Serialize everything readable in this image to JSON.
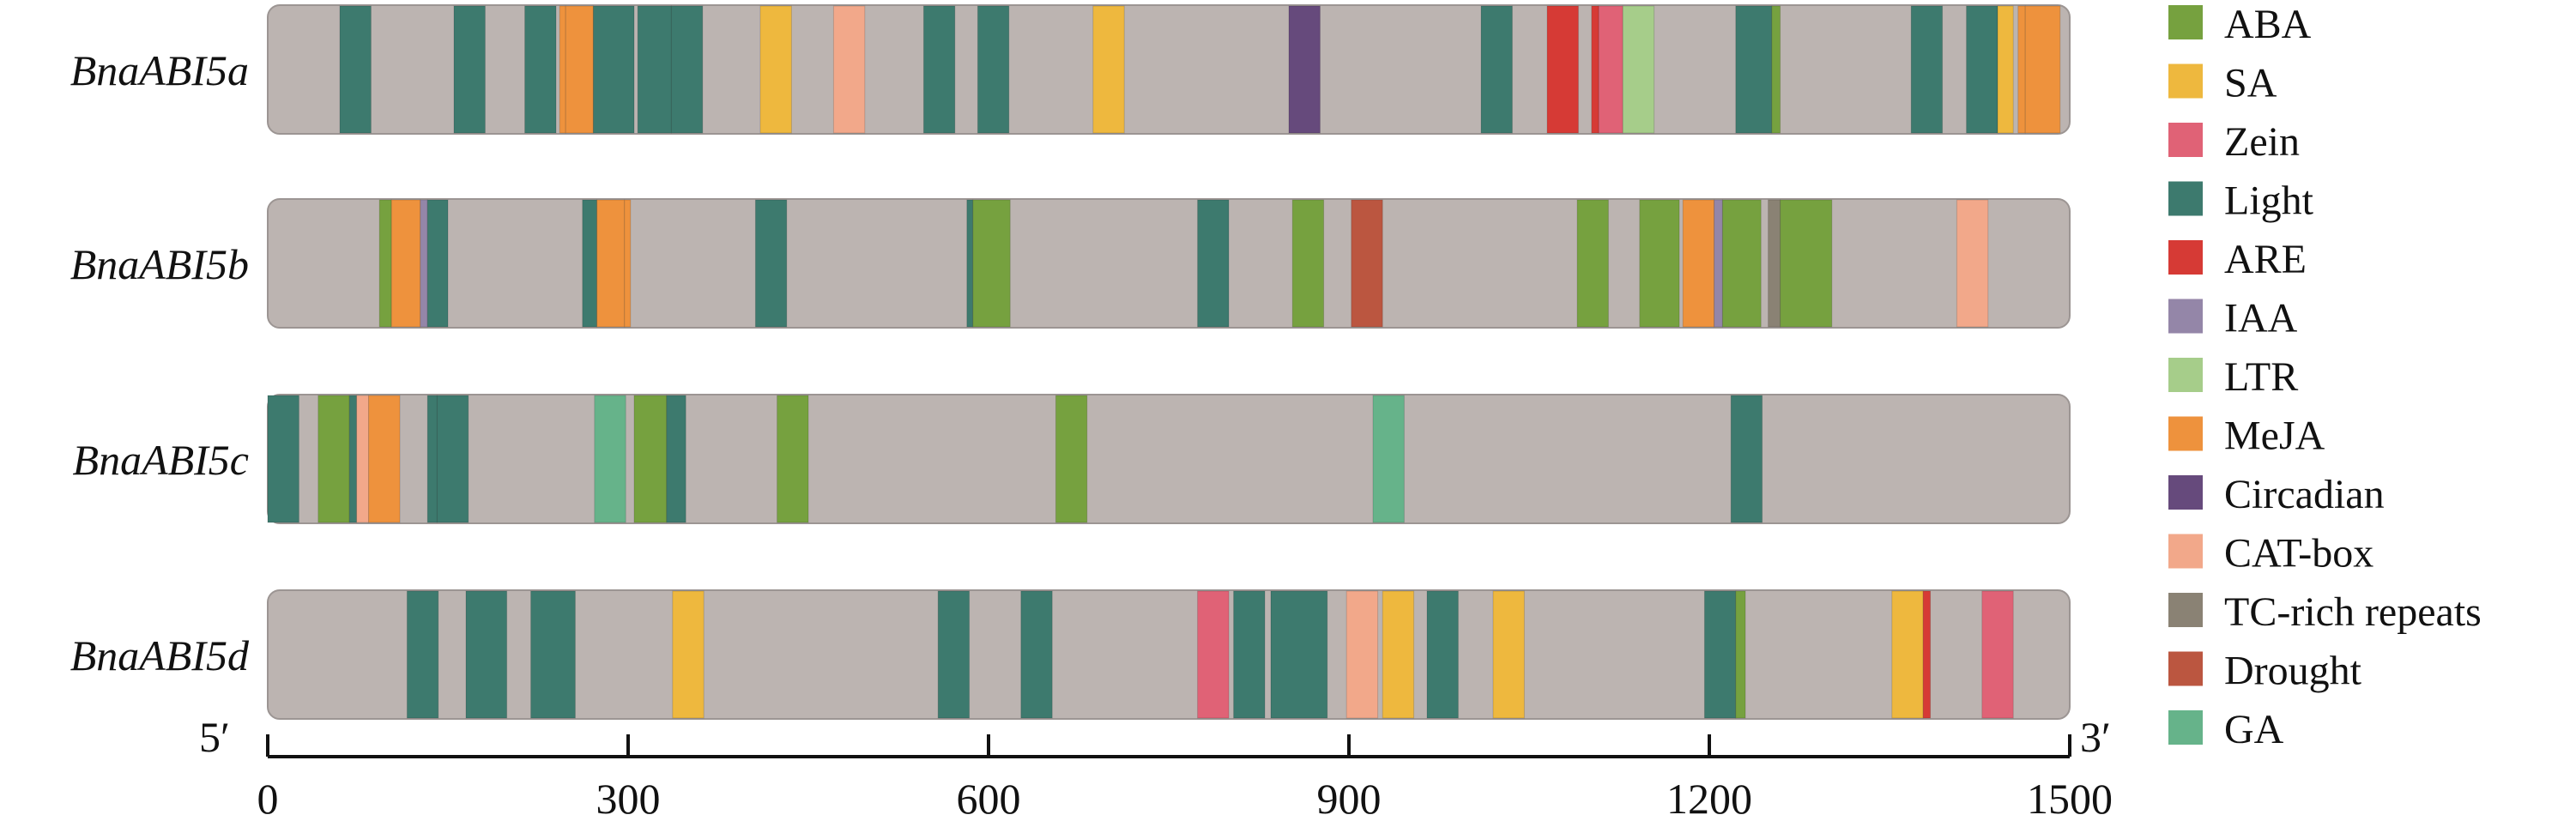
{
  "chart_data": {
    "type": "element-map",
    "xlim": [
      0,
      1500
    ],
    "x_ticks": [
      0,
      300,
      600,
      900,
      1200,
      1500
    ],
    "end_labels": {
      "left": "5′",
      "right": "3′"
    },
    "background_color": "#bcb4b1",
    "legend": [
      {
        "name": "ABA",
        "color": "#76a13f"
      },
      {
        "name": "SA",
        "color": "#eeb83e"
      },
      {
        "name": "Zein",
        "color": "#e06276"
      },
      {
        "name": "Light",
        "color": "#3d7a6e"
      },
      {
        "name": "ARE",
        "color": "#d63a35"
      },
      {
        "name": "IAA",
        "color": "#9486a8"
      },
      {
        "name": "LTR",
        "color": "#a6cd8a"
      },
      {
        "name": "MeJA",
        "color": "#ee923d"
      },
      {
        "name": "Circadian",
        "color": "#664a7c"
      },
      {
        "name": "CAT-box",
        "color": "#f2a88a"
      },
      {
        "name": "TC-rich repeats",
        "color": "#8a8274"
      },
      {
        "name": "Drought",
        "color": "#bb5640"
      },
      {
        "name": "GA",
        "color": "#66b38a"
      }
    ],
    "genes": [
      {
        "name": "BnaABI5a",
        "elements": [
          {
            "type": "Light",
            "start": 60,
            "end": 86
          },
          {
            "type": "Light",
            "start": 155,
            "end": 181
          },
          {
            "type": "Light",
            "start": 214,
            "end": 240
          },
          {
            "type": "MeJA",
            "start": 243,
            "end": 248
          },
          {
            "type": "MeJA",
            "start": 248,
            "end": 271
          },
          {
            "type": "Light",
            "start": 271,
            "end": 305
          },
          {
            "type": "Light",
            "start": 308,
            "end": 336
          },
          {
            "type": "Light",
            "start": 336,
            "end": 362
          },
          {
            "type": "SA",
            "start": 410,
            "end": 436
          },
          {
            "type": "CAT-box",
            "start": 471,
            "end": 497
          },
          {
            "type": "Light",
            "start": 546,
            "end": 572
          },
          {
            "type": "Light",
            "start": 591,
            "end": 617
          },
          {
            "type": "SA",
            "start": 687,
            "end": 713
          },
          {
            "type": "Circadian",
            "start": 850,
            "end": 876
          },
          {
            "type": "Light",
            "start": 1010,
            "end": 1036
          },
          {
            "type": "ARE",
            "start": 1065,
            "end": 1091
          },
          {
            "type": "ARE",
            "start": 1102,
            "end": 1108
          },
          {
            "type": "Zein",
            "start": 1108,
            "end": 1128
          },
          {
            "type": "LTR",
            "start": 1128,
            "end": 1154
          },
          {
            "type": "Light",
            "start": 1222,
            "end": 1252
          },
          {
            "type": "ABA",
            "start": 1252,
            "end": 1259
          },
          {
            "type": "Light",
            "start": 1368,
            "end": 1394
          },
          {
            "type": "Light",
            "start": 1414,
            "end": 1440
          },
          {
            "type": "SA",
            "start": 1440,
            "end": 1453
          },
          {
            "type": "MeJA",
            "start": 1457,
            "end": 1463
          },
          {
            "type": "MeJA",
            "start": 1463,
            "end": 1492
          }
        ]
      },
      {
        "name": "BnaABI5b",
        "elements": [
          {
            "type": "ABA",
            "start": 93,
            "end": 103
          },
          {
            "type": "MeJA",
            "start": 103,
            "end": 127
          },
          {
            "type": "IAA",
            "start": 127,
            "end": 133
          },
          {
            "type": "Light",
            "start": 133,
            "end": 150
          },
          {
            "type": "Light",
            "start": 262,
            "end": 274
          },
          {
            "type": "MeJA",
            "start": 274,
            "end": 297
          },
          {
            "type": "MeJA",
            "start": 297,
            "end": 302
          },
          {
            "type": "Light",
            "start": 406,
            "end": 432
          },
          {
            "type": "Light",
            "start": 582,
            "end": 587
          },
          {
            "type": "ABA",
            "start": 587,
            "end": 618
          },
          {
            "type": "Light",
            "start": 774,
            "end": 800
          },
          {
            "type": "ABA",
            "start": 853,
            "end": 879
          },
          {
            "type": "Drought",
            "start": 902,
            "end": 928
          },
          {
            "type": "ABA",
            "start": 1090,
            "end": 1116
          },
          {
            "type": "ABA",
            "start": 1142,
            "end": 1175
          },
          {
            "type": "MeJA",
            "start": 1178,
            "end": 1204
          },
          {
            "type": "IAA",
            "start": 1204,
            "end": 1211
          },
          {
            "type": "ABA",
            "start": 1211,
            "end": 1243
          },
          {
            "type": "TC-rich repeats",
            "start": 1249,
            "end": 1259
          },
          {
            "type": "ABA",
            "start": 1259,
            "end": 1302
          },
          {
            "type": "CAT-box",
            "start": 1406,
            "end": 1432
          }
        ]
      },
      {
        "name": "BnaABI5c",
        "elements": [
          {
            "type": "Light",
            "start": 0,
            "end": 26
          },
          {
            "type": "ABA",
            "start": 42,
            "end": 68
          },
          {
            "type": "Light",
            "start": 68,
            "end": 74
          },
          {
            "type": "CAT-box",
            "start": 74,
            "end": 84
          },
          {
            "type": "MeJA",
            "start": 84,
            "end": 110
          },
          {
            "type": "Light",
            "start": 133,
            "end": 141
          },
          {
            "type": "Light",
            "start": 141,
            "end": 167
          },
          {
            "type": "GA",
            "start": 272,
            "end": 298
          },
          {
            "type": "ABA",
            "start": 305,
            "end": 332
          },
          {
            "type": "Light",
            "start": 332,
            "end": 348
          },
          {
            "type": "ABA",
            "start": 424,
            "end": 450
          },
          {
            "type": "ABA",
            "start": 656,
            "end": 682
          },
          {
            "type": "GA",
            "start": 920,
            "end": 946
          },
          {
            "type": "Light",
            "start": 1218,
            "end": 1244
          }
        ]
      },
      {
        "name": "BnaABI5d",
        "elements": [
          {
            "type": "Light",
            "start": 116,
            "end": 142
          },
          {
            "type": "Light",
            "start": 165,
            "end": 199
          },
          {
            "type": "Light",
            "start": 219,
            "end": 256
          },
          {
            "type": "SA",
            "start": 337,
            "end": 363
          },
          {
            "type": "Light",
            "start": 558,
            "end": 584
          },
          {
            "type": "Light",
            "start": 627,
            "end": 653
          },
          {
            "type": "Zein",
            "start": 774,
            "end": 800
          },
          {
            "type": "Light",
            "start": 804,
            "end": 830
          },
          {
            "type": "Light",
            "start": 835,
            "end": 882
          },
          {
            "type": "CAT-box",
            "start": 898,
            "end": 924
          },
          {
            "type": "SA",
            "start": 928,
            "end": 954
          },
          {
            "type": "Light",
            "start": 965,
            "end": 991
          },
          {
            "type": "SA",
            "start": 1020,
            "end": 1046
          },
          {
            "type": "Light",
            "start": 1196,
            "end": 1222
          },
          {
            "type": "ABA",
            "start": 1222,
            "end": 1230
          },
          {
            "type": "SA",
            "start": 1352,
            "end": 1378
          },
          {
            "type": "ARE",
            "start": 1378,
            "end": 1384
          },
          {
            "type": "Zein",
            "start": 1427,
            "end": 1453
          }
        ]
      }
    ]
  }
}
